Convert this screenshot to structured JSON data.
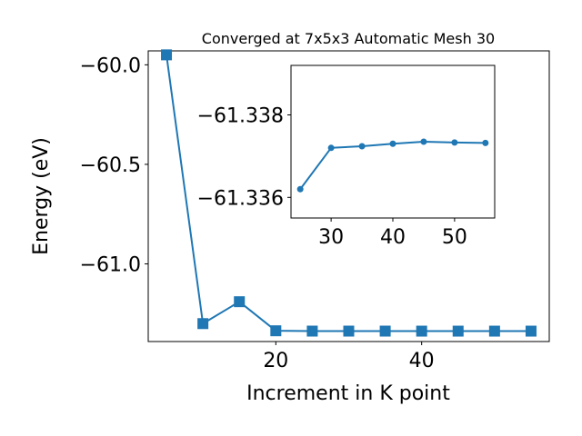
{
  "chart_data": [
    {
      "type": "line",
      "title": "Converged at 7x5x3 Automatic Mesh 30",
      "xlabel": "Increment in K point",
      "ylabel": "Energy (eV)",
      "xlim": [
        2.5,
        57.5
      ],
      "ylim": [
        -61.39,
        -59.93
      ],
      "x_ticks": [
        20,
        40
      ],
      "y_ticks": [
        -60.0,
        -60.5,
        -61.0
      ],
      "x_tick_labels": [
        "20",
        "40"
      ],
      "y_tick_labels": [
        "−60.0",
        "−60.5",
        "−61.0"
      ],
      "marker": "square",
      "color": "#1f77b4",
      "grid": false,
      "series": [
        {
          "x": [
            5,
            10,
            15,
            20,
            25,
            30,
            35,
            40,
            45,
            50,
            55
          ],
          "y": [
            -59.95,
            -61.3,
            -61.19,
            -61.336,
            -61.3376,
            -61.3376,
            -61.3376,
            -61.3377,
            -61.3377,
            -61.3377,
            -61.3377
          ]
        }
      ]
    },
    {
      "type": "line",
      "title": "",
      "xlabel": "",
      "ylabel": "",
      "xlim": [
        23.5,
        56.5
      ],
      "ylim": [
        -61.3355,
        -61.3392
      ],
      "x_ticks": [
        30,
        40,
        50
      ],
      "y_ticks": [
        -61.338,
        -61.336
      ],
      "x_tick_labels": [
        "30",
        "40",
        "50"
      ],
      "y_tick_labels": [
        "−61.338",
        "−61.336"
      ],
      "marker": "circle",
      "color": "#1f77b4",
      "grid": false,
      "series": [
        {
          "x": [
            25,
            30,
            35,
            40,
            45,
            50,
            55
          ],
          "y": [
            -61.3362,
            -61.3372,
            -61.33724,
            -61.3373,
            -61.33735,
            -61.33733,
            -61.33732
          ]
        }
      ]
    }
  ]
}
